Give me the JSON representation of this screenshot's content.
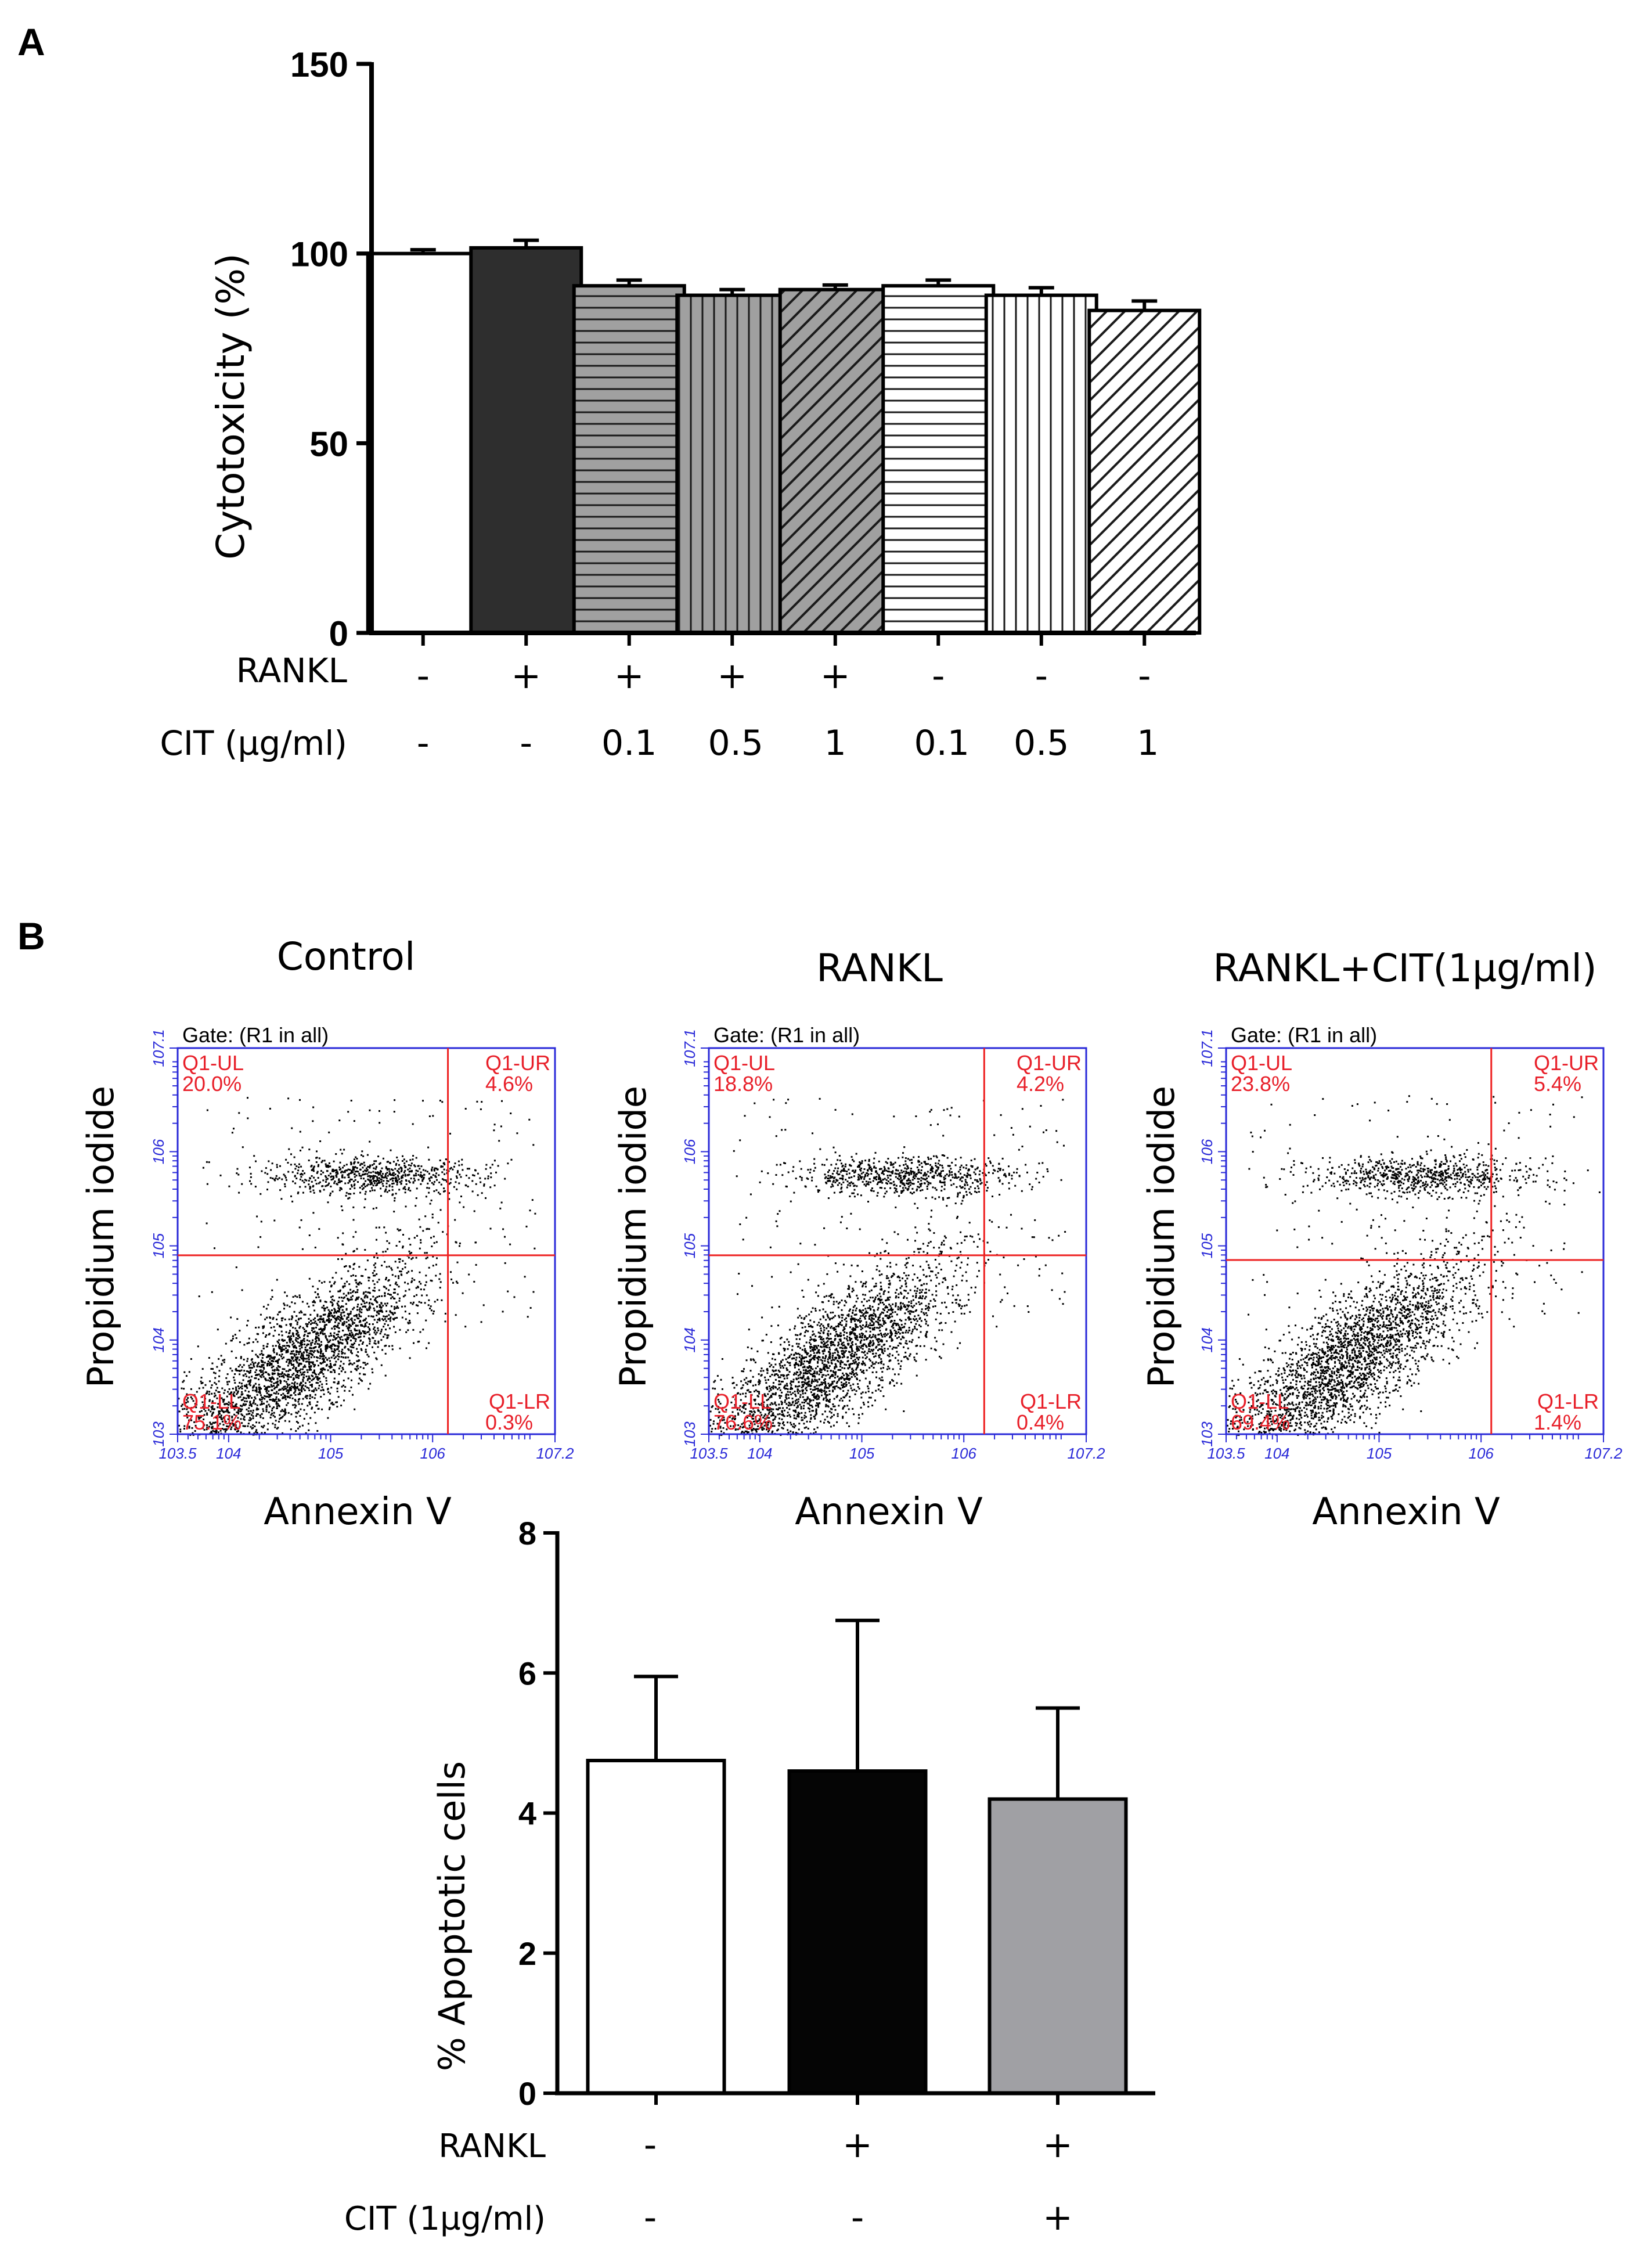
{
  "panels": {
    "a": "A",
    "b": "B"
  },
  "colors": {
    "gate_line": "#ee2222",
    "quadrant_text": "#e8202a",
    "flow_axis": "#2a2ad8",
    "panelB_grey": "#a0a0a4",
    "bar_dark": "#2e2e2e"
  },
  "chart_data": [
    {
      "id": "panelA",
      "type": "bar",
      "title": "",
      "ylabel": "Cytotoxicity (%)",
      "ylim": [
        0,
        150
      ],
      "yticks": [
        "0",
        "50",
        "100",
        "150"
      ],
      "ytick_values": [
        0,
        50,
        100,
        150
      ],
      "values": [
        100,
        101.5,
        91.5,
        89,
        90.5,
        91.5,
        89,
        85
      ],
      "errors": [
        1,
        2,
        1.5,
        1.5,
        1.2,
        1.5,
        2,
        2.5
      ],
      "fills": [
        "white",
        "dark",
        "hlines-grey",
        "vlines-grey",
        "diag-grey",
        "hlines-white",
        "vlines-white",
        "diag-white"
      ],
      "row_labels": [
        "RANKL",
        "CIT (µg/ml)"
      ],
      "rankl": [
        "-",
        "+",
        "+",
        "+",
        "+",
        "-",
        "-",
        "-"
      ],
      "cit": [
        "-",
        "-",
        "0.1",
        "0.5",
        "1",
        "0.1",
        "0.5",
        "1"
      ]
    },
    {
      "id": "panelB-flow",
      "type": "scatter",
      "xlabel": "Annexin V",
      "ylabel": "Propidium iodide",
      "gate": "Gate: (R1 in all)",
      "x_range_log10": [
        3.5,
        7.2
      ],
      "y_range_log10": [
        3,
        7.1
      ],
      "x_tick_labels": [
        "10^3.5",
        "10^4",
        "10^5",
        "10^6",
        "10^7.2"
      ],
      "y_tick_labels": [
        "10^3",
        "10^4",
        "10^5",
        "10^6",
        "10^7.1"
      ],
      "plots": [
        {
          "title": "Control",
          "gate_x": 6.15,
          "gate_y": 4.9,
          "UL": "20.0%",
          "UR": "4.6%",
          "LL": "75.1%",
          "LR": "0.3%"
        },
        {
          "title": "RANKL",
          "gate_x": 6.2,
          "gate_y": 4.9,
          "UL": "18.8%",
          "UR": "4.2%",
          "LL": "76.6%",
          "LR": "0.4%"
        },
        {
          "title": "RANKL+CIT(1µg/ml)",
          "gate_x": 6.1,
          "gate_y": 4.85,
          "UL": "23.8%",
          "UR": "5.4%",
          "LL": "69.4%",
          "LR": "1.4%"
        }
      ],
      "quadrant_names": {
        "UL": "Q1-UL",
        "UR": "Q1-UR",
        "LL": "Q1-LL",
        "LR": "Q1-LR"
      }
    },
    {
      "id": "panelB-bar",
      "type": "bar",
      "ylabel": "% Apoptotic cells",
      "ylim": [
        0,
        8
      ],
      "yticks": [
        "0",
        "2",
        "4",
        "6",
        "8"
      ],
      "ytick_values": [
        0,
        2,
        4,
        6,
        8
      ],
      "values": [
        4.75,
        4.6,
        4.2
      ],
      "errors": [
        1.2,
        2.15,
        1.3
      ],
      "fills": [
        "white",
        "black",
        "grey"
      ],
      "row_labels": [
        "RANKL",
        "CIT (1µg/ml)"
      ],
      "rankl": [
        "-",
        "+",
        "+"
      ],
      "cit": [
        "-",
        "-",
        "+"
      ]
    }
  ]
}
